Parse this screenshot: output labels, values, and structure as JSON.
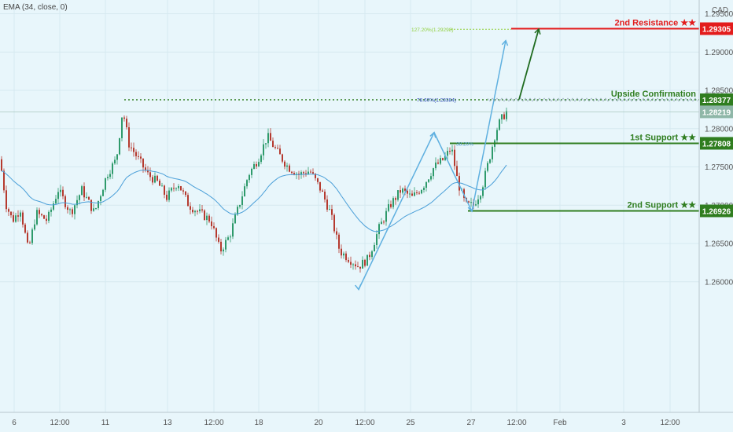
{
  "indicator_label": "EMA (34, close, 0)",
  "currency": "CAD",
  "chart_data": {
    "type": "candlestick",
    "symbol_currency": "CAD",
    "y_range": [
      1.2555,
      1.2965
    ],
    "y_ticks": [
      "1.29500",
      "1.29000",
      "1.28500",
      "1.28000",
      "1.27500",
      "1.27000",
      "1.26500",
      "1.26000"
    ],
    "x_ticks": [
      "6",
      "12:00",
      "11",
      "13",
      "12:00",
      "18",
      "20",
      "12:00",
      "25",
      "27",
      "12:00",
      "Feb",
      "3",
      "12:00"
    ],
    "levels": [
      {
        "name": "2nd Resistance ★★",
        "value": "1.29305",
        "price": 1.29305,
        "color": "#e31c1c",
        "style": "solid"
      },
      {
        "name": "Upside Confirmation",
        "value": "1.28377",
        "price": 1.28377,
        "color": "#2f7d1f",
        "style": "dotted"
      },
      {
        "name": "",
        "value": "1.28219",
        "price": 1.28219,
        "color": "#8fb7a8",
        "style": "thin"
      },
      {
        "name": "1st Support ★★",
        "value": "1.27808",
        "price": 1.27808,
        "color": "#2f7d1f",
        "style": "solid"
      },
      {
        "name": "2nd Support ★★",
        "value": "1.26926",
        "price": 1.26926,
        "color": "#2f7d1f",
        "style": "solid"
      }
    ],
    "fib_labels": [
      {
        "text": "127.20%(1.29298)",
        "price": 1.29298,
        "color": "#8fcf3b"
      },
      {
        "text": "78.60%(1.28384)",
        "price": 1.28384,
        "color": "#2f4fb4"
      },
      {
        "text": "38.20%",
        "price": 1.27808,
        "color": "#5aa0d8"
      }
    ],
    "colors": {
      "up": "#2e9a6b",
      "down": "#b53a2f",
      "ema": "#4a9fd8",
      "projection": "#5fb0e0",
      "arrow": "#1f6b1f"
    }
  }
}
